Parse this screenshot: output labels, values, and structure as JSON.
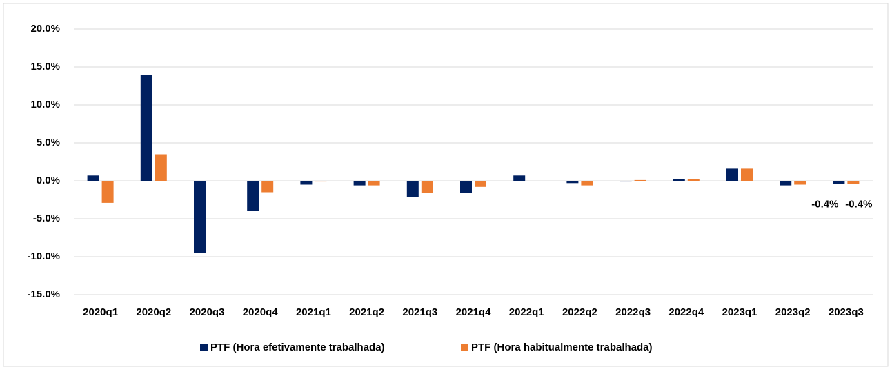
{
  "chart_data": {
    "type": "bar",
    "categories": [
      "2020q1",
      "2020q2",
      "2020q3",
      "2020q4",
      "2021q1",
      "2021q2",
      "2021q3",
      "2021q4",
      "2022q1",
      "2022q2",
      "2022q3",
      "2022q4",
      "2023q1",
      "2023q2",
      "2023q3"
    ],
    "series": [
      {
        "name": "PTF (Hora efetivamente trabalhada)",
        "color": "#002060",
        "values": [
          0.7,
          14.0,
          -9.5,
          -4.0,
          -0.5,
          -0.6,
          -2.1,
          -1.6,
          0.7,
          -0.3,
          -0.1,
          0.2,
          1.6,
          -0.6,
          -0.4
        ],
        "value_labels": [
          null,
          null,
          null,
          null,
          null,
          null,
          null,
          null,
          null,
          null,
          null,
          null,
          null,
          null,
          "-0.4%"
        ]
      },
      {
        "name": "PTF (Hora habitualmente trabalhada)",
        "color": "#ed7d31",
        "values": [
          -2.9,
          3.5,
          0,
          -1.5,
          -0.1,
          -0.6,
          -1.6,
          -0.8,
          0,
          -0.6,
          0.1,
          0.2,
          1.6,
          -0.5,
          -0.4
        ],
        "value_labels": [
          null,
          null,
          null,
          null,
          null,
          null,
          null,
          null,
          null,
          null,
          null,
          null,
          null,
          null,
          "-0.4%"
        ]
      }
    ],
    "ylim": [
      -15,
      20
    ],
    "yticks": [
      {
        "value": -15,
        "label": "-15.0%"
      },
      {
        "value": -10,
        "label": "-10.0%"
      },
      {
        "value": -5,
        "label": "-5.0%"
      },
      {
        "value": 0,
        "label": "0.0%"
      },
      {
        "value": 5,
        "label": "5.0%"
      },
      {
        "value": 10,
        "label": "10.0%"
      },
      {
        "value": 15,
        "label": "15.0%"
      },
      {
        "value": 20,
        "label": "20.0%"
      }
    ],
    "grid": true,
    "legend": "bottom"
  }
}
